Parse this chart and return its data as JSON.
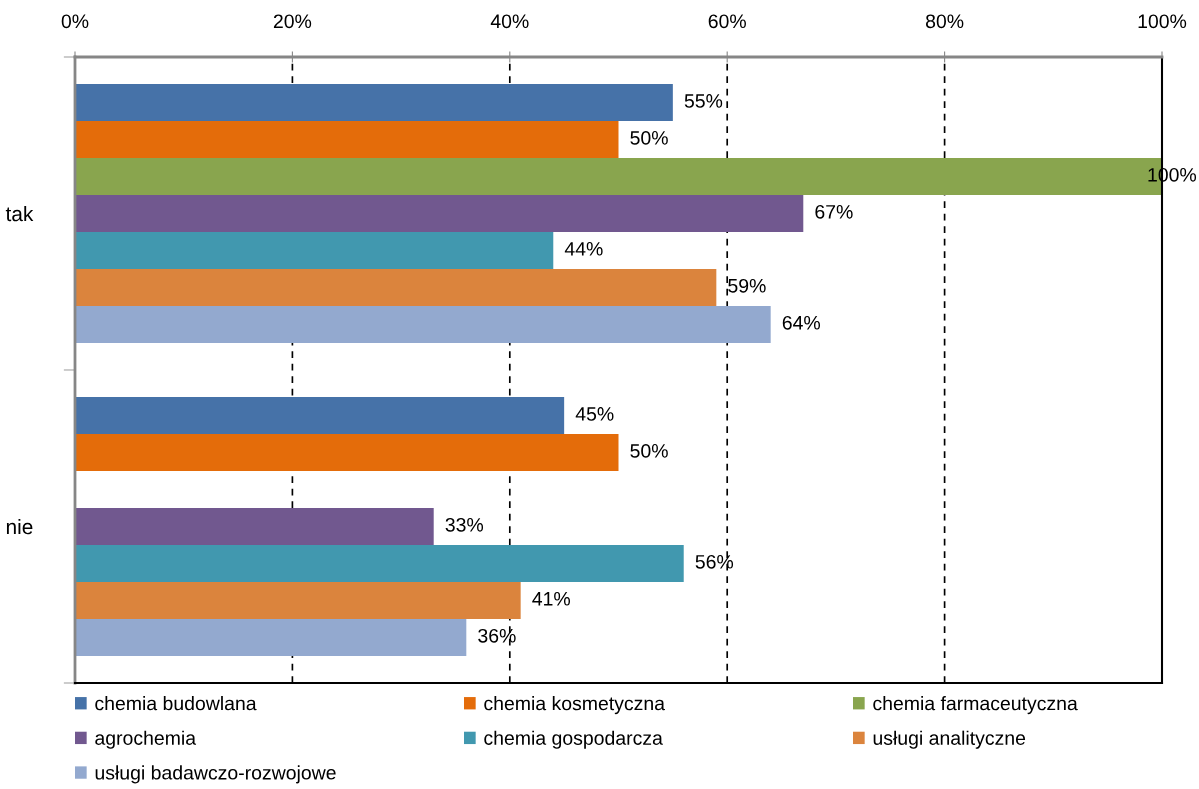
{
  "chart_data": {
    "type": "bar",
    "orientation": "horizontal",
    "categories": [
      "tak",
      "nie"
    ],
    "series": [
      {
        "name": "chemia budowlana",
        "color": "#4672a8",
        "values": [
          55,
          45
        ],
        "value_labels": [
          "55%",
          "45%"
        ]
      },
      {
        "name": "chemia kosmetyczna",
        "color": "#e46c0a",
        "values": [
          50,
          50
        ],
        "value_labels": [
          "50%",
          "50%"
        ]
      },
      {
        "name": "chemia farmaceutyczna",
        "color": "#89a54e",
        "values": [
          100,
          null
        ],
        "value_labels": [
          "100%",
          null
        ]
      },
      {
        "name": "agrochemia",
        "color": "#71588f",
        "values": [
          67,
          33
        ],
        "value_labels": [
          "67%",
          "33%"
        ]
      },
      {
        "name": "chemia gospodarcza",
        "color": "#4198af",
        "values": [
          44,
          56
        ],
        "value_labels": [
          "44%",
          "56%"
        ]
      },
      {
        "name": "usługi analityczne",
        "color": "#db843d",
        "values": [
          59,
          41
        ],
        "value_labels": [
          "59%",
          "41%"
        ]
      },
      {
        "name": "usługi badawczo-rozwojowe",
        "color": "#93a9cf",
        "values": [
          64,
          36
        ],
        "value_labels": [
          "64%",
          "36%"
        ]
      }
    ],
    "xlim": [
      0,
      100
    ],
    "xticks": [
      {
        "value": 0,
        "label": "0%"
      },
      {
        "value": 20,
        "label": "20%"
      },
      {
        "value": 40,
        "label": "40%"
      },
      {
        "value": 60,
        "label": "60%"
      },
      {
        "value": 80,
        "label": "80%"
      },
      {
        "value": 100,
        "label": "100%"
      }
    ],
    "grid": "x",
    "legend": "bottom"
  }
}
